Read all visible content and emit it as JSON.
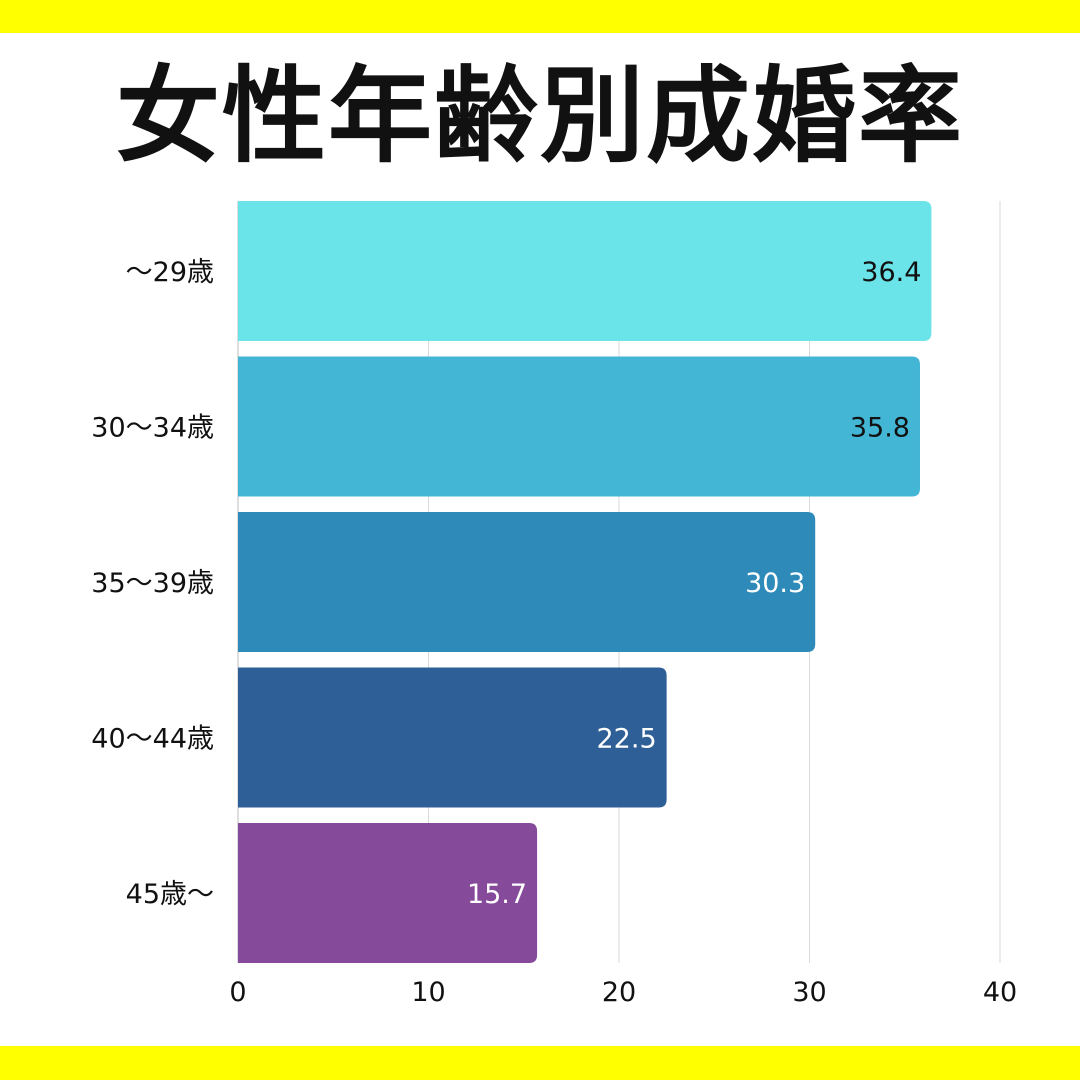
{
  "title": "女性年齢別成婚率",
  "colors": {
    "band": "#ffff00",
    "grid": "#d9d9d9",
    "bars": [
      "#6ae4e8",
      "#43b6d6",
      "#2e8ab8",
      "#2f5f97",
      "#864a9a"
    ],
    "value_text": [
      "#111111",
      "#111111",
      "#ffffff",
      "#ffffff",
      "#ffffff"
    ]
  },
  "chart_data": {
    "type": "bar",
    "orientation": "horizontal",
    "title": "女性年齢別成婚率",
    "categories": [
      "～29歳",
      "30～34歳",
      "35～39歳",
      "40～44歳",
      "45歳～"
    ],
    "values": [
      36.4,
      35.8,
      30.3,
      22.5,
      15.7
    ],
    "value_labels": [
      "36.4",
      "35.8",
      "30.3",
      "22.5",
      "15.7"
    ],
    "xlim": [
      0,
      40
    ],
    "xticks": [
      "0",
      "10",
      "20",
      "30",
      "40"
    ],
    "xlabel": "",
    "ylabel": "",
    "grid": true,
    "legend": "none"
  }
}
